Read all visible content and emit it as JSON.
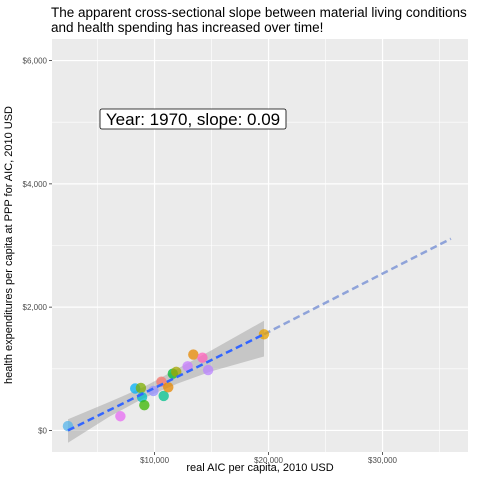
{
  "chart_data": {
    "type": "scatter",
    "title_lines": [
      "The apparent cross-sectional slope between material living conditions",
      "and health spending has increased over time!"
    ],
    "xlabel": "real AIC per capita, 2010 USD",
    "ylabel": "health expenditures per capita at PPP for AIC, 2010 USD",
    "xlim": [
      1000,
      37500
    ],
    "ylim": [
      -350,
      6350
    ],
    "x_ticks": [
      10000,
      20000,
      30000
    ],
    "x_tick_labels": [
      "$10,000",
      "$20,000",
      "$30,000"
    ],
    "y_ticks": [
      0,
      2000,
      4000,
      6000
    ],
    "y_tick_labels": [
      "$0",
      "$2,000",
      "$4,000",
      "$6,000"
    ],
    "grid": true,
    "annotation": "Year: 1970, slope: 0.09",
    "points": [
      {
        "x": 2400,
        "y": 70,
        "color": "#56B4E9"
      },
      {
        "x": 7000,
        "y": 230,
        "color": "#E76BF3"
      },
      {
        "x": 8300,
        "y": 680,
        "color": "#00B0F6"
      },
      {
        "x": 8800,
        "y": 690,
        "color": "#7CAE00"
      },
      {
        "x": 8900,
        "y": 540,
        "color": "#00BFC4"
      },
      {
        "x": 9100,
        "y": 410,
        "color": "#39B600"
      },
      {
        "x": 9900,
        "y": 640,
        "color": "#9590FF"
      },
      {
        "x": 10600,
        "y": 790,
        "color": "#F8766D"
      },
      {
        "x": 10800,
        "y": 560,
        "color": "#00C08B"
      },
      {
        "x": 11200,
        "y": 700,
        "color": "#E58700"
      },
      {
        "x": 11600,
        "y": 920,
        "color": "#00BA38"
      },
      {
        "x": 11900,
        "y": 950,
        "color": "#A3A500"
      },
      {
        "x": 12900,
        "y": 1040,
        "color": "#C77CFF"
      },
      {
        "x": 13400,
        "y": 1230,
        "color": "#E58700"
      },
      {
        "x": 14200,
        "y": 1180,
        "color": "#FF62BC"
      },
      {
        "x": 14700,
        "y": 980,
        "color": "#B983FF"
      },
      {
        "x": 19600,
        "y": 1560,
        "color": "#E5A000"
      }
    ],
    "fit_line": {
      "x0": 2400,
      "y0": 0,
      "x1": 19600,
      "y1": 1560,
      "color": "#3366FF"
    },
    "extension_line": {
      "x0": 19600,
      "y0": 1560,
      "x1": 36000,
      "y1": 3110,
      "color": "#8FA3D9"
    },
    "ci_band": [
      {
        "x": 2400,
        "lo": -200,
        "hi": 180
      },
      {
        "x": 6000,
        "lo": 220,
        "hi": 460
      },
      {
        "x": 9000,
        "lo": 520,
        "hi": 700
      },
      {
        "x": 12000,
        "lo": 760,
        "hi": 1000
      },
      {
        "x": 15000,
        "lo": 960,
        "hi": 1300
      },
      {
        "x": 19600,
        "lo": 1200,
        "hi": 1780
      }
    ]
  }
}
